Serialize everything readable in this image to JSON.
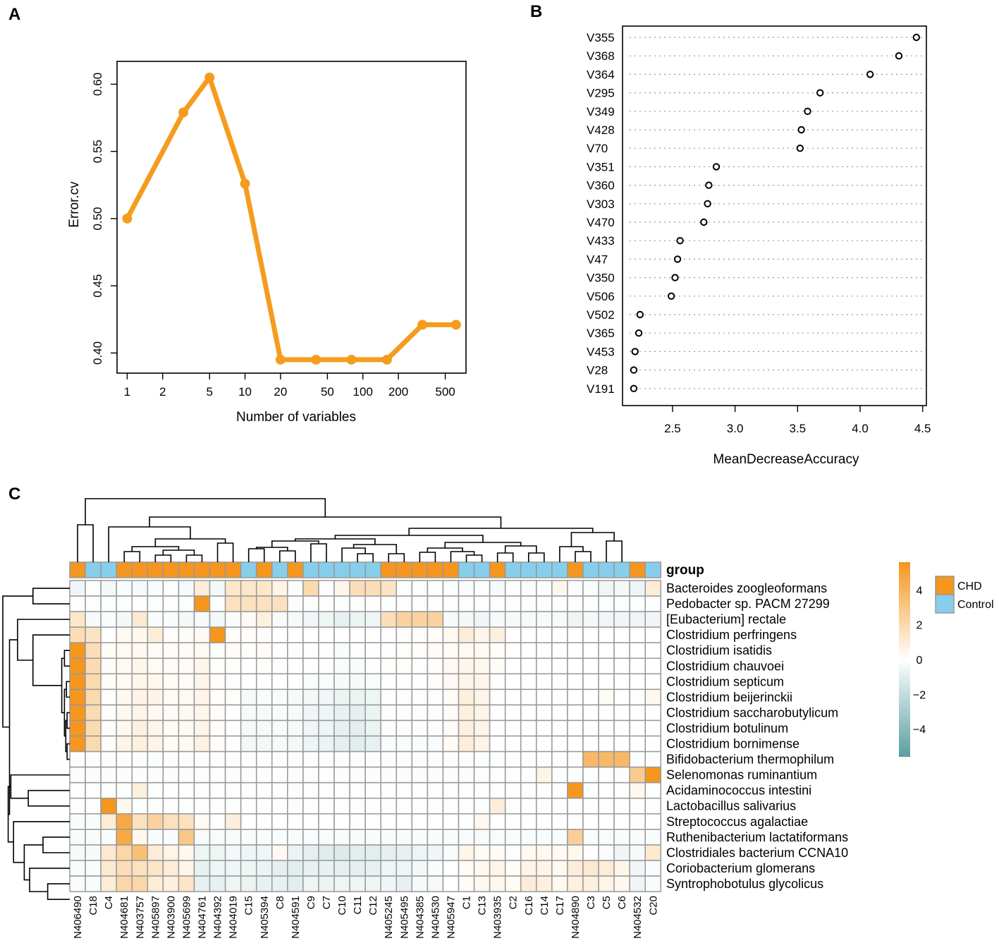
{
  "chart_data": [
    {
      "panel": "A",
      "type": "line",
      "xlabel": "Number of variables",
      "ylabel": "Error.cv",
      "xscale": "log",
      "x": [
        1,
        3,
        5,
        10,
        20,
        40,
        80,
        160,
        320,
        617
      ],
      "y": [
        0.5,
        0.579,
        0.605,
        0.526,
        0.395,
        0.395,
        0.395,
        0.395,
        0.421,
        0.421
      ],
      "xticks": [
        1,
        2,
        5,
        10,
        20,
        50,
        100,
        200,
        500
      ],
      "xtick_labels": [
        "1",
        "2",
        "5",
        "10",
        "20",
        "50",
        "100",
        "200",
        "500"
      ],
      "yticks": [
        0.4,
        0.45,
        0.5,
        0.55,
        0.6
      ],
      "ytick_labels": [
        "0.40",
        "0.45",
        "0.50",
        "0.55",
        "0.60"
      ],
      "xlim": [
        0.82,
        750
      ],
      "ylim": [
        0.385,
        0.617
      ],
      "color": "#f59c1f"
    },
    {
      "panel": "B",
      "type": "scatter",
      "xlabel": "MeanDecreaseAccuracy",
      "categories": [
        "V355",
        "V368",
        "V364",
        "V295",
        "V349",
        "V428",
        "V70",
        "V351",
        "V360",
        "V303",
        "V470",
        "V433",
        "V47",
        "V350",
        "V506",
        "V502",
        "V365",
        "V453",
        "V28",
        "V191"
      ],
      "values": [
        4.45,
        4.31,
        4.08,
        3.68,
        3.58,
        3.53,
        3.52,
        2.85,
        2.79,
        2.78,
        2.75,
        2.56,
        2.54,
        2.52,
        2.49,
        2.24,
        2.23,
        2.2,
        2.19,
        2.19
      ],
      "xticks": [
        2.5,
        3.0,
        3.5,
        4.0,
        4.5
      ],
      "xtick_labels": [
        "2.5",
        "3.0",
        "3.5",
        "4.0",
        "4.5"
      ],
      "xlim": [
        2.1,
        4.53
      ]
    },
    {
      "panel": "C",
      "type": "heatmap",
      "columns": [
        "N406490",
        "C18",
        "C4",
        "N404681",
        "N403757",
        "N405897",
        "N403900",
        "N405699",
        "N404761",
        "N404392",
        "N404019",
        "C15",
        "N405394",
        "C8",
        "N404591",
        "C9",
        "C7",
        "C10",
        "C11",
        "C12",
        "N405245",
        "N405495",
        "N404385",
        "N404530",
        "N405947",
        "C1",
        "C13",
        "N403935",
        "C2",
        "C16",
        "C14",
        "C17",
        "N404890",
        "C3",
        "C5",
        "C6",
        "N404532",
        "C20"
      ],
      "groups": [
        "CHD",
        "Control",
        "Control",
        "CHD",
        "CHD",
        "CHD",
        "CHD",
        "CHD",
        "CHD",
        "CHD",
        "CHD",
        "Control",
        "CHD",
        "Control",
        "CHD",
        "Control",
        "Control",
        "Control",
        "Control",
        "Control",
        "CHD",
        "CHD",
        "CHD",
        "CHD",
        "CHD",
        "Control",
        "Control",
        "CHD",
        "Control",
        "Control",
        "Control",
        "Control",
        "CHD",
        "Control",
        "Control",
        "Control",
        "CHD",
        "Control"
      ],
      "rows": [
        "Bacteroides zoogleoformans",
        "Pedobacter sp. PACM 27299",
        "[Eubacterium] rectale",
        "Clostridium perfringens",
        "Clostridium isatidis",
        "Clostridium chauvoei",
        "Clostridium septicum",
        "Clostridium beijerinckii",
        "Clostridium saccharobutylicum",
        "Clostridium botulinum",
        "Clostridium bornimense",
        "Bifidobacterium thermophilum",
        "Selenomonas ruminantium",
        "Acidaminococcus intestini",
        "Lactobacillus salivarius",
        "Streptococcus agalactiae",
        "Ruthenibacterium lactatiformans",
        "Clostridiales bacterium CCNA10",
        "Coriobacterium glomerans",
        "Syntrophobotulus glycolicus"
      ],
      "values": [
        [
          -0.5,
          -0.1,
          -0.4,
          -0.2,
          -0.3,
          -0.2,
          -0.1,
          -0.3,
          1,
          -0.4,
          1.3,
          1.3,
          1.3,
          0.6,
          -0.1,
          2.0,
          -0.1,
          0.5,
          1.8,
          1.8,
          1.5,
          -0.1,
          -0.1,
          -0.1,
          -0.1,
          -0.2,
          -0.1,
          -0.3,
          -0.1,
          -0.2,
          -0.1,
          0.5,
          -0.2,
          -0.2,
          -0.5,
          -0.4,
          -0.6,
          1.0
        ],
        [
          -0.1,
          -0.1,
          -0.1,
          -0.1,
          -0.1,
          -0.1,
          -0.1,
          -0.1,
          5.6,
          -0.1,
          1.6,
          1.6,
          1.6,
          1.6,
          -0.1,
          -0.1,
          -0.1,
          -0.1,
          -0.1,
          -0.1,
          -0.1,
          -0.1,
          -0.1,
          -0.1,
          -0.1,
          -0.1,
          -0.1,
          -0.1,
          -0.1,
          -0.1,
          -0.1,
          -0.1,
          -0.1,
          -0.1,
          -0.1,
          -0.1,
          -0.1,
          -0.1
        ],
        [
          1.3,
          -0.3,
          -0.2,
          -0.4,
          1.2,
          -0.2,
          -0.2,
          -0.4,
          -0.3,
          -0.4,
          -0.2,
          0.3,
          0.8,
          -0.3,
          -0.3,
          -0.5,
          -0.6,
          -0.8,
          -0.7,
          -0.6,
          1.8,
          2.4,
          2.4,
          2.4,
          -0.3,
          -0.4,
          -0.5,
          -0.3,
          -0.3,
          -0.3,
          -0.3,
          -0.3,
          -0.6,
          -0.4,
          -0.5,
          -0.5,
          -0.6,
          -0.5
        ],
        [
          1.8,
          1.5,
          0.0,
          0.3,
          0.4,
          1.0,
          0.1,
          0.2,
          0.3,
          5.6,
          0.1,
          0.1,
          0.1,
          0.0,
          0.0,
          0.0,
          0.0,
          0.0,
          0.0,
          0.0,
          0.0,
          0.1,
          0.1,
          0.1,
          0.3,
          1.0,
          0.5,
          0.8,
          0.0,
          0.0,
          0.0,
          0.0,
          0.0,
          0.0,
          0.0,
          0.0,
          0.0,
          0.0
        ],
        [
          5.6,
          1.8,
          0.2,
          0.3,
          0.4,
          0.2,
          0.2,
          0.2,
          0.3,
          -0.1,
          0.2,
          0.1,
          0.2,
          0.1,
          0.1,
          -0.1,
          -0.1,
          -0.2,
          -0.1,
          -0.1,
          0.1,
          0.1,
          0.1,
          0.2,
          0.2,
          0.3,
          0.3,
          0.1,
          0.0,
          0.0,
          0.0,
          0.0,
          0.0,
          0.0,
          0.0,
          0.0,
          0.0,
          0.0
        ],
        [
          5.6,
          1.9,
          0.2,
          0.3,
          0.5,
          0.2,
          0.2,
          0.2,
          0.5,
          0.1,
          0.1,
          0.0,
          0.1,
          0.1,
          0.0,
          -0.1,
          -0.1,
          -0.2,
          -0.2,
          -0.1,
          0.1,
          0.1,
          0.1,
          0.1,
          0.3,
          0.5,
          0.4,
          0.2,
          0.0,
          0.0,
          0.0,
          0.0,
          0.0,
          0.0,
          0.0,
          0.0,
          0.0,
          0.0
        ],
        [
          5.6,
          2.0,
          0.2,
          0.3,
          0.5,
          0.4,
          0.2,
          0.2,
          0.6,
          0.1,
          0.1,
          0.0,
          0.1,
          0.0,
          0.0,
          -0.2,
          -0.2,
          -0.3,
          -0.3,
          -0.2,
          0.1,
          0.1,
          0.1,
          0.1,
          0.3,
          0.6,
          0.5,
          0.1,
          0.0,
          0.0,
          0.0,
          0.0,
          0.0,
          0.0,
          0.0,
          0.0,
          0.0,
          0.0
        ],
        [
          5.6,
          2.0,
          0.1,
          0.4,
          0.6,
          0.6,
          0.2,
          0.3,
          0.6,
          0.1,
          0.1,
          -0.3,
          -0.2,
          -0.2,
          -0.3,
          -0.4,
          -0.5,
          -0.7,
          -0.7,
          -0.6,
          -0.1,
          -0.1,
          -0.1,
          -0.1,
          0.2,
          0.8,
          0.6,
          0.1,
          0.0,
          0.0,
          0.0,
          0.0,
          0.0,
          0.0,
          0.2,
          0.0,
          -0.1,
          0.4
        ],
        [
          5.6,
          1.9,
          0.1,
          0.4,
          0.6,
          0.3,
          0.2,
          0.3,
          0.5,
          0.1,
          0.0,
          -0.3,
          -0.3,
          -0.2,
          -0.3,
          -0.5,
          -0.6,
          -0.8,
          -0.9,
          -0.7,
          -0.1,
          -0.1,
          -0.1,
          -0.1,
          0.2,
          0.8,
          0.6,
          0.0,
          0.0,
          0.0,
          0.0,
          0.0,
          0.0,
          0.0,
          0.0,
          0.0,
          0.0,
          0.0
        ],
        [
          5.6,
          1.9,
          0.1,
          0.4,
          0.8,
          0.5,
          0.2,
          0.3,
          0.6,
          0.1,
          0.0,
          -0.3,
          -0.3,
          -0.2,
          -0.3,
          -0.5,
          -0.6,
          -0.8,
          -0.9,
          -0.7,
          -0.1,
          -0.1,
          -0.1,
          -0.1,
          0.2,
          0.8,
          0.6,
          0.0,
          0.0,
          0.0,
          0.0,
          0.0,
          0.0,
          0.0,
          0.0,
          0.0,
          0.0,
          0.0
        ],
        [
          5.6,
          2.0,
          0.1,
          0.6,
          0.8,
          0.6,
          0.2,
          0.3,
          0.7,
          0.1,
          0.0,
          -0.4,
          -0.4,
          -0.3,
          -0.4,
          -0.6,
          -0.7,
          -0.9,
          -1.0,
          -0.8,
          -0.2,
          -0.2,
          -0.2,
          -0.2,
          0.2,
          0.9,
          0.6,
          0.0,
          0.0,
          0.0,
          0.0,
          0.0,
          0.0,
          0.0,
          0.0,
          0.0,
          0.0,
          0.0
        ],
        [
          -0.1,
          -0.1,
          -0.1,
          -0.1,
          -0.1,
          -0.1,
          -0.1,
          -0.1,
          -0.1,
          -0.1,
          -0.1,
          -0.1,
          -0.1,
          -0.1,
          -0.1,
          -0.1,
          -0.1,
          -0.1,
          -0.1,
          -0.1,
          -0.1,
          -0.1,
          -0.1,
          -0.1,
          -0.1,
          -0.1,
          -0.1,
          -0.1,
          -0.1,
          -0.1,
          -0.1,
          -0.1,
          -0.1,
          3.8,
          3.8,
          3.8,
          -0.1,
          -0.1
        ],
        [
          -0.1,
          -0.1,
          -0.1,
          -0.1,
          -0.1,
          -0.1,
          -0.1,
          -0.1,
          -0.1,
          -0.1,
          -0.1,
          -0.1,
          -0.1,
          -0.1,
          -0.1,
          -0.1,
          -0.1,
          -0.1,
          -0.1,
          -0.1,
          -0.1,
          -0.1,
          -0.1,
          -0.1,
          -0.1,
          -0.1,
          -0.1,
          -0.1,
          -0.1,
          -0.1,
          0.6,
          -0.1,
          -0.1,
          -0.1,
          -0.1,
          -0.1,
          2.8,
          5.6
        ],
        [
          -0.1,
          -0.1,
          -0.1,
          -0.1,
          0.8,
          -0.1,
          -0.1,
          -0.1,
          -0.1,
          -0.1,
          -0.1,
          -0.1,
          -0.1,
          -0.1,
          -0.1,
          -0.1,
          -0.1,
          -0.1,
          -0.1,
          -0.1,
          -0.1,
          -0.1,
          -0.1,
          -0.1,
          -0.1,
          -0.1,
          -0.1,
          -0.1,
          -0.1,
          -0.1,
          -0.1,
          -0.1,
          5.6,
          -0.1,
          -0.1,
          -0.1,
          0.4,
          -0.1
        ],
        [
          -0.1,
          -0.1,
          5.6,
          0.4,
          -0.1,
          -0.1,
          -0.1,
          -0.1,
          -0.1,
          -0.1,
          -0.1,
          -0.1,
          -0.1,
          -0.1,
          -0.1,
          -0.1,
          -0.1,
          -0.1,
          -0.1,
          -0.1,
          -0.1,
          -0.1,
          -0.1,
          -0.1,
          -0.1,
          -0.1,
          -0.1,
          1.0,
          -0.1,
          -0.1,
          -0.1,
          -0.1,
          -0.1,
          -0.1,
          -0.1,
          -0.1,
          -0.1,
          -0.1
        ],
        [
          -0.2,
          -0.2,
          1.0,
          4.6,
          1.6,
          2.4,
          1.6,
          1.6,
          0.3,
          0.1,
          0.9,
          0.0,
          0.0,
          0.0,
          0.0,
          0.0,
          0.0,
          0.0,
          -0.1,
          0.0,
          0.0,
          0.0,
          0.0,
          0.0,
          0.0,
          0.0,
          0.4,
          0.0,
          0.0,
          0.0,
          0.0,
          0.0,
          0.0,
          0.0,
          0.0,
          0.0,
          -0.1,
          0.0
        ],
        [
          -0.2,
          -0.2,
          -0.2,
          4.6,
          0.4,
          -0.2,
          -0.2,
          3.0,
          -0.2,
          -0.2,
          -0.2,
          -0.2,
          -0.2,
          -0.2,
          -0.2,
          -0.2,
          -0.2,
          -0.2,
          -0.2,
          -0.2,
          -0.2,
          -0.2,
          -0.2,
          -0.2,
          -0.2,
          -0.2,
          -0.2,
          -0.2,
          -0.2,
          -0.2,
          -0.2,
          -0.2,
          2.6,
          -0.2,
          -0.2,
          -0.2,
          -0.2,
          -0.2
        ],
        [
          -0.3,
          -0.3,
          1.2,
          2.2,
          3.4,
          1.0,
          0.6,
          0.4,
          -0.6,
          -0.6,
          -0.4,
          -0.5,
          -0.5,
          0.3,
          -0.7,
          -0.9,
          -1.1,
          -1.2,
          -1.0,
          -1.0,
          -0.9,
          -0.8,
          -0.6,
          -0.5,
          -0.2,
          0.6,
          0.2,
          0.2,
          -0.1,
          0.3,
          0.4,
          0.3,
          0.4,
          0.0,
          -0.2,
          -0.5,
          -0.3,
          1.2
        ],
        [
          -0.2,
          -0.2,
          1.2,
          1.8,
          1.6,
          1.4,
          1.0,
          0.6,
          -0.8,
          -0.6,
          -0.5,
          -0.6,
          -0.7,
          -0.9,
          -1.0,
          -0.8,
          -0.8,
          -0.9,
          -0.9,
          -0.8,
          -0.6,
          -0.6,
          -0.4,
          -0.2,
          0.0,
          0.2,
          0.4,
          0.6,
          0.2,
          0.6,
          0.6,
          0.4,
          1.0,
          1.2,
          1.0,
          0.5,
          -0.5,
          -0.2
        ],
        [
          -0.2,
          -0.2,
          1.0,
          2.2,
          2.2,
          1.0,
          0.8,
          1.4,
          -0.8,
          -0.8,
          -0.6,
          -0.7,
          -0.8,
          -0.8,
          -1.0,
          -0.6,
          -0.7,
          -0.6,
          -0.6,
          -0.6,
          -0.5,
          -0.8,
          -0.3,
          -0.3,
          0.0,
          0.2,
          0.4,
          0.4,
          0.2,
          1.0,
          0.8,
          0.4,
          0.8,
          0.8,
          0.6,
          0.4,
          -0.6,
          -0.2
        ]
      ],
      "group_label": "group",
      "legend_groups": [
        {
          "name": "CHD",
          "color": "#f5961e"
        },
        {
          "name": "Control",
          "color": "#87ceeb"
        }
      ],
      "colorbar_ticks": [
        4,
        2,
        0,
        -2,
        -4
      ],
      "colorbar_tick_labels": [
        "4",
        "2",
        "0",
        "−2",
        "−4"
      ],
      "colorbar_range": [
        -5.6,
        5.6
      ],
      "colors": {
        "high": "#f5961e",
        "mid": "#ffffff",
        "low": "#5b9ea0"
      }
    }
  ],
  "panels": {
    "a": "A",
    "b": "B",
    "c": "C"
  }
}
